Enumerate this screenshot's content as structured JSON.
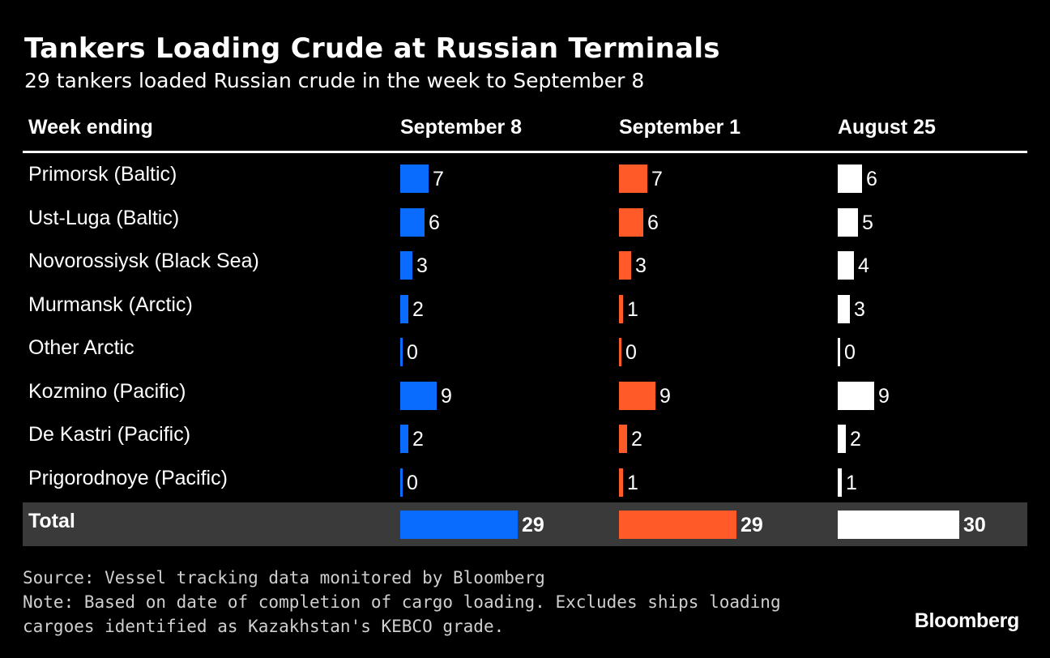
{
  "chart_data": {
    "type": "table",
    "title": "Tankers Loading Crude at Russian Terminals",
    "subtitle": "29 tankers loaded Russian crude in the week to September 8",
    "row_header": "Week ending",
    "columns": [
      "September 8",
      "September 1",
      "August 25"
    ],
    "column_colors": [
      "#0a6cff",
      "#ff5a27",
      "#ffffff"
    ],
    "rows": [
      {
        "label": "Primorsk (Baltic)",
        "values": [
          7,
          7,
          6
        ]
      },
      {
        "label": "Ust-Luga (Baltic)",
        "values": [
          6,
          6,
          5
        ]
      },
      {
        "label": "Novorossiysk (Black Sea)",
        "values": [
          3,
          3,
          4
        ]
      },
      {
        "label": "Murmansk (Arctic)",
        "values": [
          2,
          1,
          3
        ]
      },
      {
        "label": "Other Arctic",
        "values": [
          0,
          0,
          0
        ]
      },
      {
        "label": "Kozmino (Pacific)",
        "values": [
          9,
          9,
          9
        ]
      },
      {
        "label": "De Kastri (Pacific)",
        "values": [
          2,
          2,
          2
        ]
      },
      {
        "label": "Prigorodnoye (Pacific)",
        "values": [
          0,
          1,
          1
        ]
      }
    ],
    "total": {
      "label": "Total",
      "values": [
        29,
        29,
        30
      ]
    }
  },
  "footer": {
    "source": "Source: Vessel tracking data monitored by Bloomberg",
    "note_line1": "Note: Based on date of completion of cargo loading. Excludes ships loading",
    "note_line2": "cargoes identified as Kazakhstan's KEBCO grade."
  },
  "brand": "Bloomberg",
  "colors": {
    "background": "#000000",
    "total_band": "#3a3a3a",
    "text": "#ffffff"
  }
}
